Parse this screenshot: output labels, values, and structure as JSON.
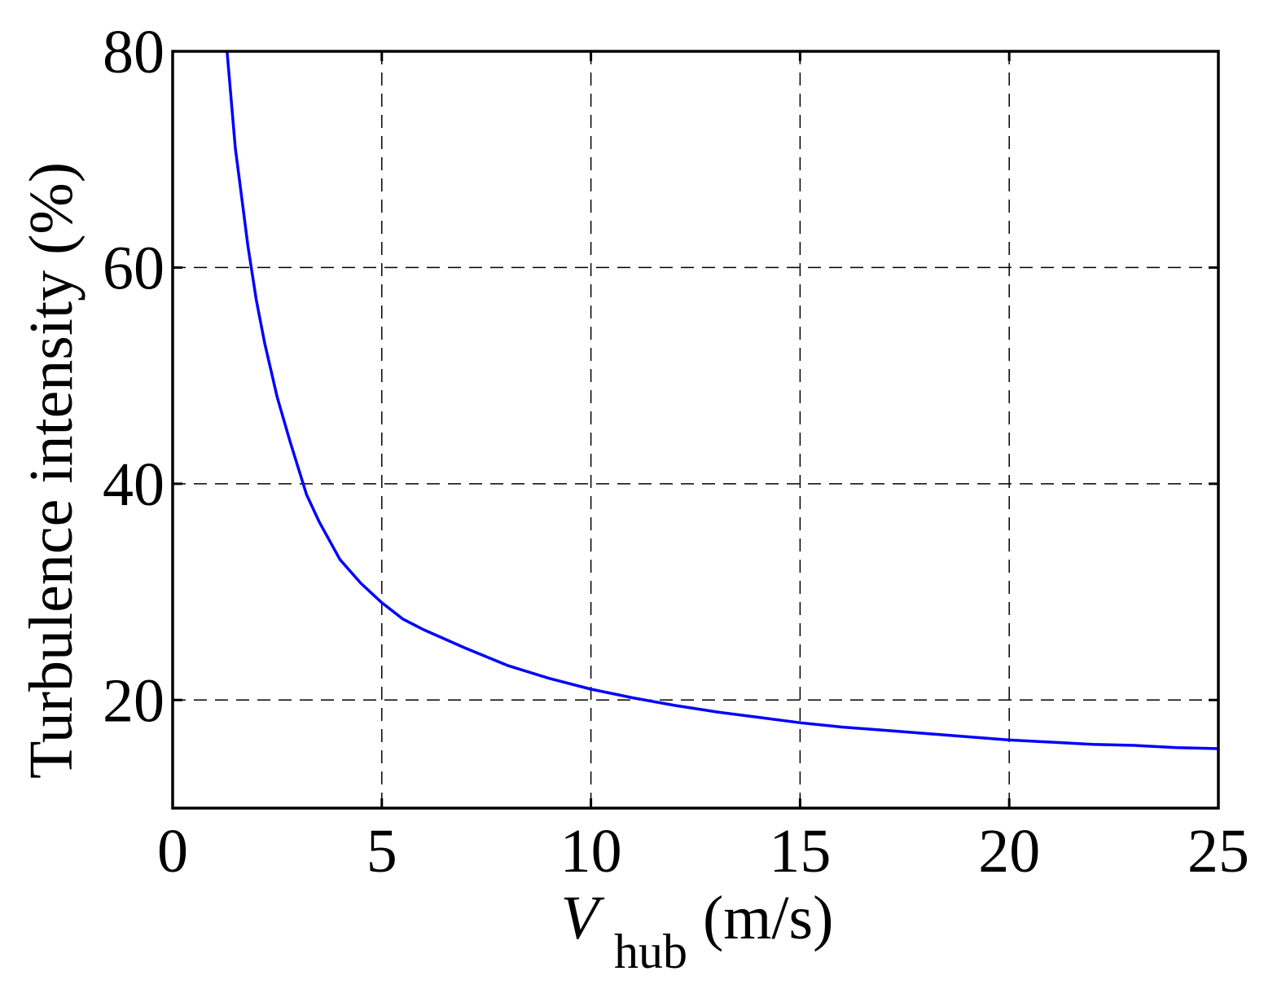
{
  "chart_data": {
    "type": "line",
    "title": "",
    "xlabel": {
      "symbol": "V",
      "subscript": "hub",
      "unit": " (m/s)"
    },
    "ylabel": "Turbulence intensity (%)",
    "xlim": [
      0,
      25
    ],
    "ylim": [
      10,
      80
    ],
    "xticks": [
      0,
      5,
      10,
      15,
      20,
      25
    ],
    "yticks": [
      20,
      40,
      60,
      80
    ],
    "xtick_labels": [
      "0",
      "5",
      "10",
      "15",
      "20",
      "25"
    ],
    "ytick_labels": [
      "20",
      "40",
      "60",
      "80"
    ],
    "grid": true,
    "grid_style": "dashed",
    "series": [
      {
        "color": "#0000ff",
        "x": [
          1.3,
          1.5,
          1.6,
          1.8,
          2.0,
          2.2,
          2.5,
          2.8,
          3.0,
          3.2,
          3.5,
          4.0,
          4.5,
          5.0,
          5.5,
          6.0,
          7.0,
          8.0,
          9.0,
          10.0,
          11.0,
          12.0,
          13.0,
          14.0,
          15.0,
          16.0,
          17.0,
          18.0,
          19.0,
          20.0,
          21.0,
          22.0,
          23.0,
          24.0,
          25.0
        ],
        "y": [
          80.0,
          71.0,
          68.0,
          62.0,
          57.0,
          53.0,
          48.0,
          44.0,
          41.5,
          39.0,
          36.5,
          33.0,
          30.8,
          29.0,
          27.5,
          26.5,
          24.8,
          23.2,
          22.0,
          21.0,
          20.2,
          19.5,
          18.9,
          18.4,
          17.9,
          17.5,
          17.2,
          16.9,
          16.6,
          16.3,
          16.1,
          15.9,
          15.8,
          15.6,
          15.5
        ]
      }
    ]
  }
}
